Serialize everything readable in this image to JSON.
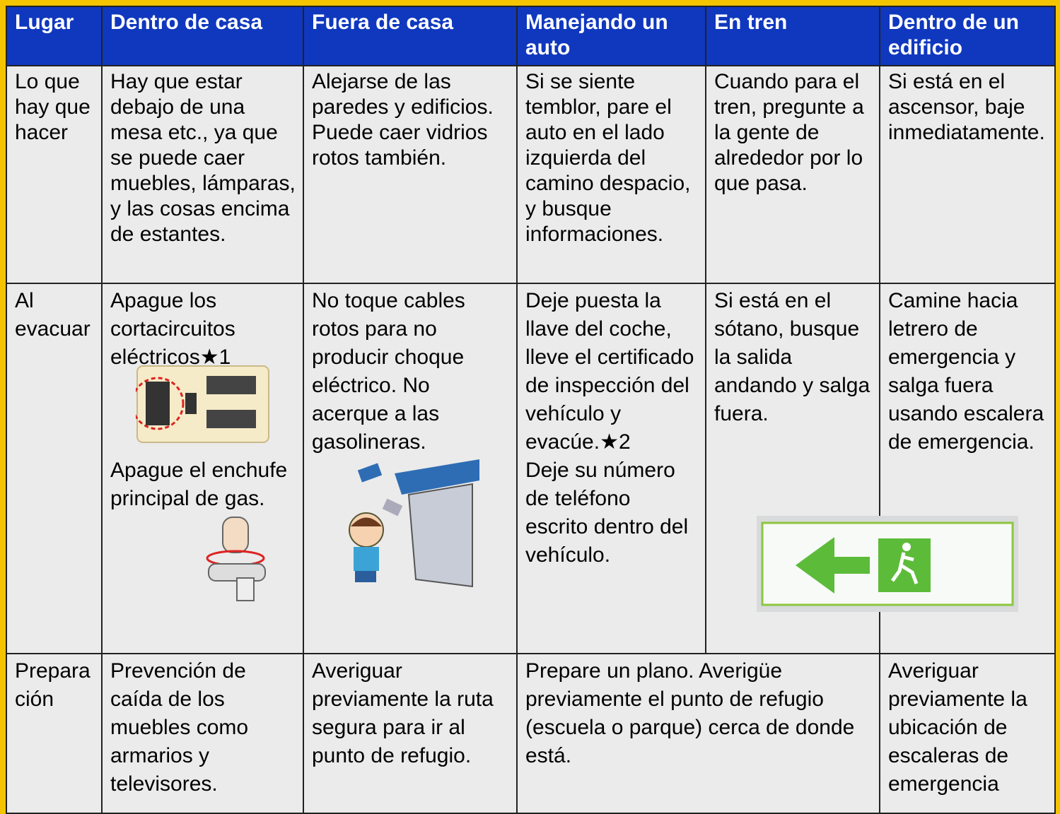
{
  "table": {
    "header": [
      "Lugar",
      "Dentro de casa",
      "Fuera de casa",
      "Manejando un auto",
      "En tren",
      "Dentro de un edificio"
    ],
    "rows": [
      [
        "Lo que hay que hacer",
        "Hay que estar debajo de una mesa etc., ya que se puede caer muebles, lámparas, y las cosas encima de estantes.",
        "Alejarse de las paredes y edificios. Puede caer vidrios rotos también.",
        "Si se siente temblor, pare el auto en el lado izquierda del camino despacio, y busque informaciones.",
        "Cuando para el tren, pregunte a la gente de alrededor por lo que pasa.",
        "Si está en el ascensor, baje inmediatamente."
      ],
      [
        "Al evacuar",
        [
          "Apague los cortacircuitos eléctricos★1",
          "Apague el enchufe principal de gas."
        ],
        "No toque cables rotos para no producir choque eléctrico. No acerque a las gasolineras.",
        [
          "Deje puesta la llave del coche, lleve el certificado de inspección del vehículo y evacúe.★2",
          "Deje su número de teléfono escrito dentro del vehículo."
        ],
        "Si está en el sótano, busque la salida andando y salga fuera.",
        "Camine hacia letrero de emergencia y salga fuera usando escalera de emergencia."
      ],
      [
        "Preparación",
        "Prevención de caída de los muebles como armarios y televisores.",
        "Averiguar previamente la ruta segura para ir al punto de refugio.",
        "Prepare un plano. Averigüe previamente el punto de refugio (escuela o parque) cerca de donde está.",
        "Averiguar previamente la ubicación de escaleras de emergencia"
      ]
    ]
  }
}
